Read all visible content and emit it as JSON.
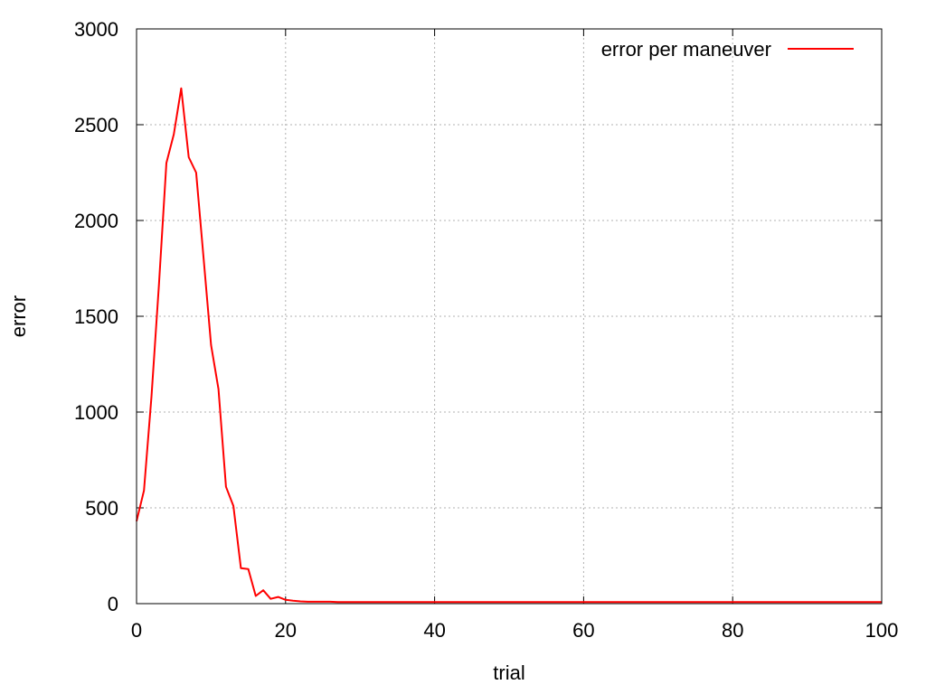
{
  "chart_data": {
    "type": "line",
    "xlabel": "trial",
    "ylabel": "error",
    "xlim": [
      0,
      100
    ],
    "ylim": [
      0,
      3000
    ],
    "xticks": [
      "0",
      "20",
      "40",
      "60",
      "80",
      "100"
    ],
    "yticks": [
      "0",
      "500",
      "1000",
      "1500",
      "2000",
      "2500",
      "3000"
    ],
    "grid": true,
    "legend_position": "top-right",
    "series": [
      {
        "name": "error per maneuver",
        "color": "#ff0000",
        "x": [
          0,
          1,
          2,
          3,
          4,
          5,
          6,
          7,
          8,
          9,
          10,
          11,
          12,
          13,
          14,
          15,
          16,
          17,
          18,
          19,
          20,
          21,
          22,
          23,
          24,
          25,
          26,
          27,
          28,
          29,
          30,
          40,
          50,
          60,
          70,
          80,
          90,
          100
        ],
        "y": [
          430,
          590,
          1080,
          1660,
          2300,
          2450,
          2690,
          2330,
          2250,
          1800,
          1350,
          1120,
          610,
          510,
          185,
          180,
          40,
          70,
          25,
          35,
          20,
          15,
          12,
          10,
          10,
          10,
          10,
          8,
          8,
          8,
          8,
          8,
          8,
          8,
          8,
          8,
          8,
          8
        ]
      }
    ]
  }
}
